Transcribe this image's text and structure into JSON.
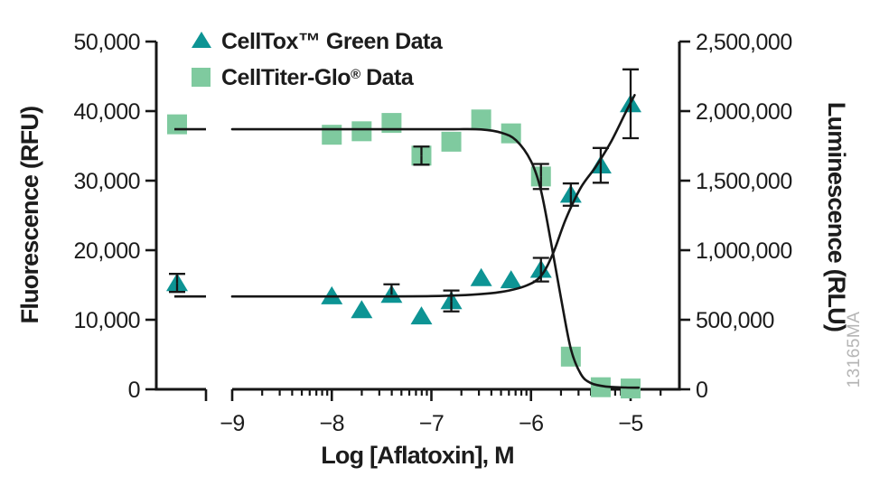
{
  "figure": {
    "watermark": "13165MA",
    "background": "#ffffff"
  },
  "chart_data": {
    "type": "scatter",
    "title": "",
    "xlabel": "Log [Aflatoxin], M",
    "x_axis": {
      "scale": "log10",
      "tick_values": [
        -9,
        -8,
        -7,
        -6,
        -5
      ],
      "tick_labels": [
        "−9",
        "−8",
        "−7",
        "−6",
        "−5"
      ],
      "axis_break": true,
      "control_note": "untreated control points plotted on short segment left of axis break"
    },
    "y_left": {
      "label": "Fluorescence (RFU)",
      "min": 0,
      "max": 50000,
      "tick_values": [
        0,
        10000,
        20000,
        30000,
        40000,
        50000
      ],
      "tick_labels": [
        "0",
        "10,000",
        "20,000",
        "30,000",
        "40,000",
        "50,000"
      ]
    },
    "y_right": {
      "label": "Luminescence (RLU)",
      "min": 0,
      "max": 2500000,
      "tick_values": [
        0,
        500000,
        1000000,
        1500000,
        2000000,
        2500000
      ],
      "tick_labels": [
        "0",
        "500,000",
        "1,000,000",
        "1,500,000",
        "2,000,000",
        "2,500,000"
      ]
    },
    "legend": {
      "position": "top-left",
      "entries": [
        "CellTox™ Green Data",
        "CellTiter-Glo® Data"
      ]
    },
    "grid": false,
    "series": [
      {
        "name": "CellTox™ Green Data",
        "axis": "left",
        "marker": "triangle",
        "color": "#0D9494",
        "points": [
          {
            "x": "control",
            "y": 15300,
            "eu": 1300,
            "ed": 1300
          },
          {
            "x": -8.0,
            "y": 13400
          },
          {
            "x": -7.7,
            "y": 11400
          },
          {
            "x": -7.4,
            "y": 13600,
            "eu": 1500,
            "ed": 0
          },
          {
            "x": -7.1,
            "y": 10500
          },
          {
            "x": -6.8,
            "y": 12700,
            "eu": 1500,
            "ed": 1500
          },
          {
            "x": -6.5,
            "y": 16000
          },
          {
            "x": -6.2,
            "y": 15700
          },
          {
            "x": -5.9,
            "y": 17200,
            "eu": 1700,
            "ed": 1700
          },
          {
            "x": -5.6,
            "y": 28000,
            "eu": 1600,
            "ed": 1600
          },
          {
            "x": -5.3,
            "y": 32200,
            "eu": 2500,
            "ed": 2500
          },
          {
            "x": -5.0,
            "y": 41000,
            "eu": 5000,
            "ed": 4900
          }
        ],
        "fit_curve": [
          [
            -9,
            13350
          ],
          [
            -8.3,
            13350
          ],
          [
            -7.6,
            13350
          ],
          [
            -7.0,
            13400
          ],
          [
            -6.6,
            13600
          ],
          [
            -6.3,
            14000
          ],
          [
            -6.05,
            14900
          ],
          [
            -5.9,
            16300
          ],
          [
            -5.78,
            19500
          ],
          [
            -5.65,
            24500
          ],
          [
            -5.5,
            29000
          ],
          [
            -5.35,
            32000
          ],
          [
            -5.2,
            35500
          ],
          [
            -5.05,
            39800
          ],
          [
            -4.96,
            42300
          ]
        ]
      },
      {
        "name": "CellTiter-Glo® Data",
        "axis": "right",
        "marker": "square",
        "color": "#7FCA9F",
        "points": [
          {
            "x": "control",
            "y": 1905000
          },
          {
            "x": -8.0,
            "y": 1830000
          },
          {
            "x": -7.7,
            "y": 1855000
          },
          {
            "x": -7.4,
            "y": 1915000
          },
          {
            "x": -7.1,
            "y": 1680000,
            "eu": 65000,
            "ed": 65000
          },
          {
            "x": -6.8,
            "y": 1780000
          },
          {
            "x": -6.5,
            "y": 1940000
          },
          {
            "x": -6.2,
            "y": 1840000
          },
          {
            "x": -5.9,
            "y": 1530000,
            "eu": 90000,
            "ed": 90000
          },
          {
            "x": -5.6,
            "y": 235000
          },
          {
            "x": -5.3,
            "y": 15000
          },
          {
            "x": -5.0,
            "y": 6000
          }
        ],
        "fit_curve": [
          [
            -9,
            1870000
          ],
          [
            -8.2,
            1870000
          ],
          [
            -7.4,
            1870000
          ],
          [
            -6.8,
            1870000
          ],
          [
            -6.5,
            1868000
          ],
          [
            -6.3,
            1845000
          ],
          [
            -6.15,
            1790000
          ],
          [
            -6.0,
            1640000
          ],
          [
            -5.9,
            1430000
          ],
          [
            -5.8,
            1060000
          ],
          [
            -5.7,
            660000
          ],
          [
            -5.6,
            290000
          ],
          [
            -5.5,
            110000
          ],
          [
            -5.4,
            45000
          ],
          [
            -5.25,
            20000
          ],
          [
            -5.05,
            13000
          ],
          [
            -4.92,
            12000
          ]
        ]
      }
    ]
  }
}
